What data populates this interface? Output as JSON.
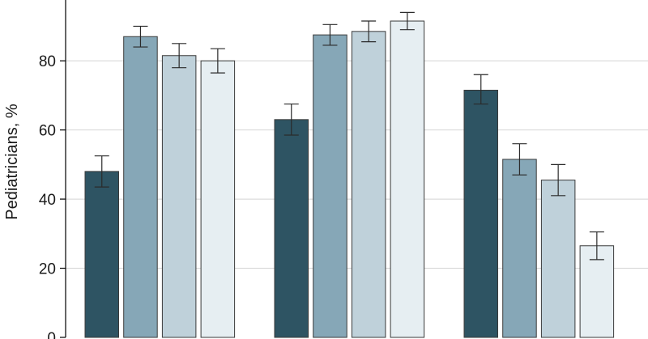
{
  "chart_data": {
    "type": "bar",
    "ylabel": "Pediatricians, %",
    "ylim": [
      0,
      100
    ],
    "yticks": [
      0,
      20,
      40,
      60,
      80
    ],
    "grid": true,
    "colors": [
      "#2e5463",
      "#86a7b7",
      "#bfd1da",
      "#e6eef2"
    ],
    "groups": [
      {
        "values": [
          48,
          87,
          81.5,
          80
        ],
        "errors": [
          [
            43.5,
            52.5
          ],
          [
            84,
            90
          ],
          [
            78,
            85
          ],
          [
            76.5,
            83.5
          ]
        ]
      },
      {
        "values": [
          63,
          87.5,
          88.5,
          91.5
        ],
        "errors": [
          [
            58.5,
            67.5
          ],
          [
            84.5,
            90.5
          ],
          [
            85.5,
            91.5
          ],
          [
            89,
            94
          ]
        ]
      },
      {
        "values": [
          71.5,
          51.5,
          45.5,
          26.5
        ],
        "errors": [
          [
            67.5,
            76
          ],
          [
            47,
            56
          ],
          [
            41,
            50
          ],
          [
            22.5,
            30.5
          ]
        ]
      }
    ]
  }
}
